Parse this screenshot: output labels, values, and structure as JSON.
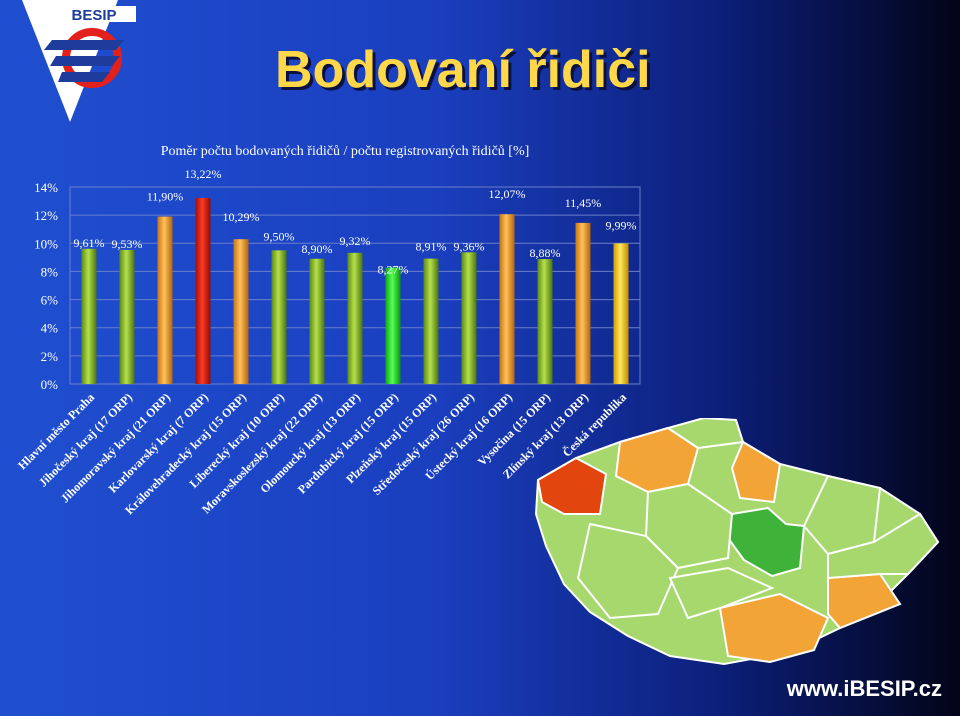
{
  "slide": {
    "title": "Bodovaní řidiči",
    "logo_text": "BESIP",
    "website": "www.iBESIP.cz"
  },
  "colors": {
    "bg_left": "#1f4fd0",
    "bg_right": "#020418",
    "title": "#ffd84a",
    "bar_green": "#8fc032",
    "bar_orange": "#f3a437",
    "bar_red": "#e81a0c",
    "bar_bright_green": "#22dd22",
    "bar_yellow": "#ffd21f"
  },
  "chart_data": {
    "type": "bar",
    "title": "Poměr počtu bodovaných řidičů / počtu registrovaných řidičů [%]",
    "categories": [
      "Hlavní město Praha",
      "Jihočeský kraj (17 ORP)",
      "Jihomoravský kraj (21 ORP)",
      "Karlovarský kraj (7 ORP)",
      "Královehradecký kraj (15 ORP)",
      "Liberecký kraj (10 ORP)",
      "Moravskoslezský kraj (22 ORP)",
      "Olomoucký kraj (13 ORP)",
      "Pardubický kraj (15 ORP)",
      "Plzeňský kraj (15 ORP)",
      "Středočeský kraj (26 ORP)",
      "Ústecký kraj (16 ORP)",
      "Vysočina (15 ORP)",
      "Zlínský kraj (13 ORP)",
      "Česká republika"
    ],
    "values": [
      9.61,
      9.53,
      11.9,
      13.22,
      10.29,
      9.5,
      8.9,
      9.32,
      8.27,
      8.91,
      9.36,
      12.07,
      8.88,
      11.45,
      9.99
    ],
    "value_labels": [
      "9,61%",
      "9,53%",
      "11,90%",
      "13,22%",
      "10,29%",
      "9,50%",
      "8,90%",
      "9,32%",
      "8,27%",
      "8,91%",
      "9,36%",
      "12,07%",
      "8,88%",
      "11,45%",
      "9,99%"
    ],
    "bar_colors": [
      "green",
      "green",
      "orange",
      "red",
      "orange",
      "green",
      "green",
      "green",
      "bright_green",
      "green",
      "green",
      "orange",
      "green",
      "orange",
      "yellow"
    ],
    "ylim": [
      0,
      14
    ],
    "yticks": [
      "0%",
      "2%",
      "4%",
      "6%",
      "8%",
      "10%",
      "12%",
      "14%"
    ],
    "grid": true,
    "legend": "none"
  }
}
